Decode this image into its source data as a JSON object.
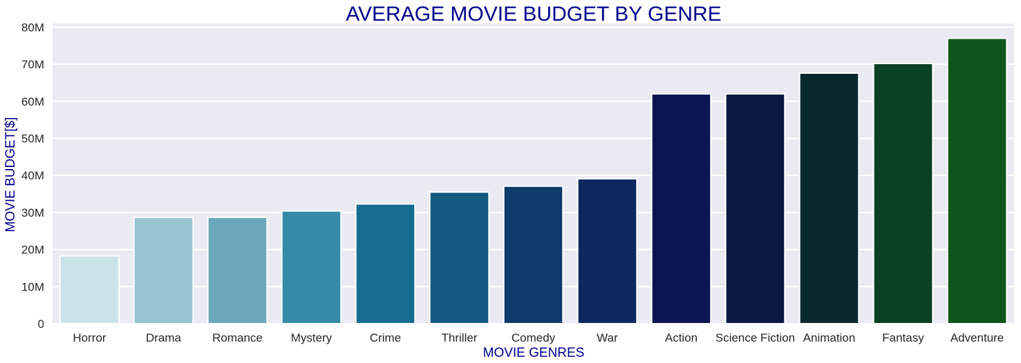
{
  "chart_data": {
    "type": "bar",
    "title": "AVERAGE MOVIE BUDGET BY GENRE",
    "xlabel": "MOVIE GENRES",
    "ylabel": "MOVIE BUDGET[$]",
    "categories": [
      "Horror",
      "Drama",
      "Romance",
      "Mystery",
      "Crime",
      "Thriller",
      "Comedy",
      "War",
      "Action",
      "Science Fiction",
      "Animation",
      "Fantasy",
      "Adventure"
    ],
    "values": [
      18300000,
      28700000,
      28700000,
      30400000,
      32300000,
      35500000,
      37100000,
      39100000,
      62000000,
      62000000,
      67600000,
      70200000,
      77000000
    ],
    "colors": [
      "#cce2e9",
      "#9bc4d2",
      "#6aa7bb",
      "#358aa8",
      "#156e91",
      "#13587f",
      "#0e3b6c",
      "#0c285e",
      "#0b1351",
      "#0a1840",
      "#08292e",
      "#0a4025",
      "#10561c"
    ],
    "ylim": [
      0,
      81000000
    ],
    "yticks": [
      0,
      10000000,
      20000000,
      30000000,
      40000000,
      50000000,
      60000000,
      70000000,
      80000000
    ],
    "ytick_labels": [
      "0",
      "10M",
      "20M",
      "30M",
      "40M",
      "50M",
      "60M",
      "70M",
      "80M"
    ],
    "grid": true,
    "background": "#eaeaf2",
    "legend": "none"
  }
}
